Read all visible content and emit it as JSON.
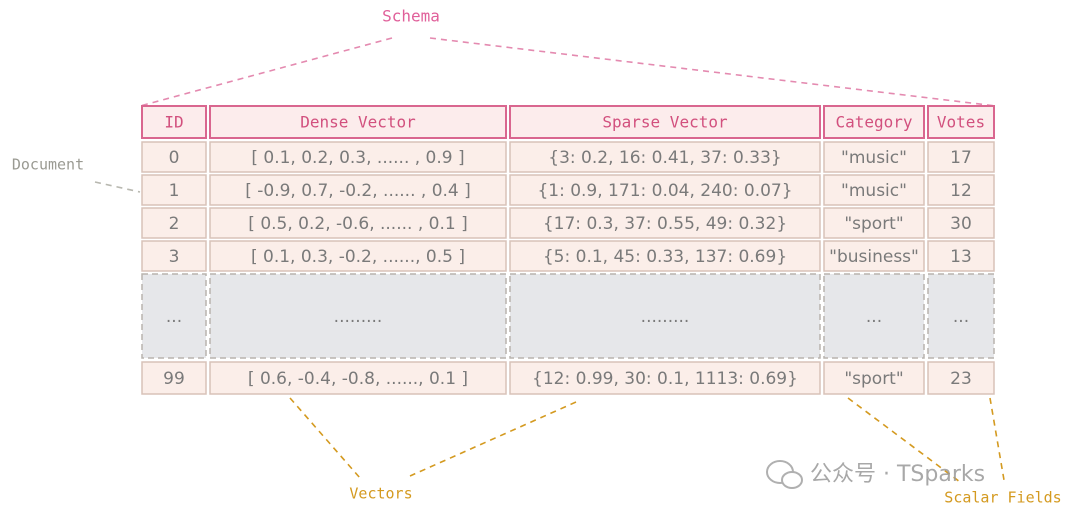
{
  "title": "Schema",
  "document_label": "Document",
  "table": {
    "columns": [
      "ID",
      "Dense Vector",
      "Sparse Vector",
      "Category",
      "Votes"
    ],
    "rows": [
      [
        "0",
        "[ 0.1, 0.2, 0.3, ...... , 0.9 ]",
        "{3: 0.2,  16: 0.41,  37: 0.33}",
        "\"music\"",
        "17"
      ],
      [
        "1",
        "[ -0.9, 0.7, -0.2, ...... , 0.4 ]",
        "{1: 0.9,  171: 0.04,  240: 0.07}",
        "\"music\"",
        "12"
      ],
      [
        "2",
        "[ 0.5, 0.2, -0.6, ...... , 0.1 ]",
        "{17: 0.3,  37: 0.55,  49: 0.32}",
        "\"sport\"",
        "30"
      ],
      [
        "3",
        "[ 0.1, 0.3, -0.2, ......, 0.5 ]",
        "{5: 0.1,  45: 0.33,  137: 0.69}",
        "\"business\"",
        "13"
      ],
      [
        "...",
        ".........",
        ".........",
        "...",
        "..."
      ],
      [
        "99",
        "[ 0.6, -0.4, -0.8, ......, 0.1 ]",
        "{12: 0.99,  30: 0.1,  1113: 0.69}",
        "\"sport\"",
        "23"
      ]
    ]
  },
  "annotations": {
    "vectors": "Vectors",
    "scalar_fields": "Scalar Fields"
  },
  "watermark": "公众号 · TSparks"
}
